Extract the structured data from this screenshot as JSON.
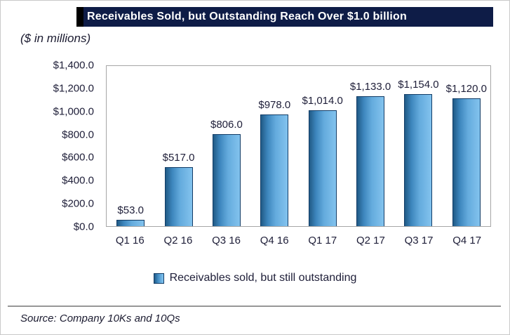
{
  "header": {
    "title": "Receivables Sold, but Outstanding Reach Over $1.0 billion",
    "subtitle": "($ in millions)"
  },
  "chart_data": {
    "type": "bar",
    "title": "Receivables Sold, but Outstanding Reach Over $1.0 billion",
    "units": "($ in millions)",
    "categories": [
      "Q1 16",
      "Q2 16",
      "Q3 16",
      "Q4 16",
      "Q1 17",
      "Q2 17",
      "Q3 17",
      "Q4 17"
    ],
    "values": [
      53,
      517,
      806,
      978,
      1014,
      1133,
      1154,
      1120
    ],
    "data_labels": [
      "$53.0",
      "$517.0",
      "$806.0",
      "$978.0",
      "$1,014.0",
      "$1,133.0",
      "$1,154.0",
      "$1,120.0"
    ],
    "xlabel": "",
    "ylabel": "",
    "ylim": [
      0,
      1400
    ],
    "ytick_step": 200,
    "ytick_labels": [
      "$1,400.0",
      "$1,200.0",
      "$1,000.0",
      "$800.0",
      "$600.0",
      "$400.0",
      "$200.0",
      "$0.0"
    ],
    "grid": false,
    "legend": {
      "position": "bottom",
      "label": "Receivables sold, but still outstanding"
    },
    "colors": {
      "banner_background": "#0e1c47",
      "banner_accent": "#000000",
      "bar_fill_dark": "#205a86",
      "bar_fill_light": "#83c3ee",
      "bar_border": "#123c66",
      "text": "#20203a"
    }
  },
  "footer": {
    "source": "Source: Company 10Ks and 10Qs"
  }
}
